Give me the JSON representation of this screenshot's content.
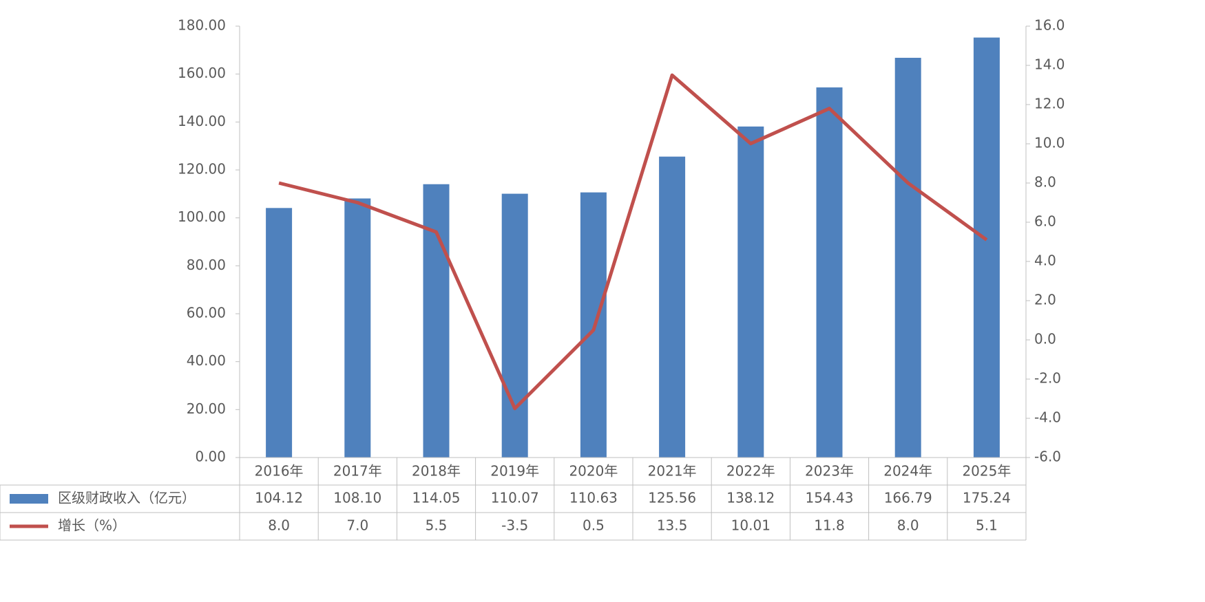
{
  "chart_data": {
    "type": "bar-line",
    "categories": [
      "2016年",
      "2017年",
      "2018年",
      "2019年",
      "2020年",
      "2021年",
      "2022年",
      "2023年",
      "2024年",
      "2025年"
    ],
    "series": [
      {
        "name": "区级财政收入（亿元）",
        "type": "bar",
        "color": "#4f81bd",
        "values": [
          104.12,
          108.1,
          114.05,
          110.07,
          110.63,
          125.56,
          138.12,
          154.43,
          166.79,
          175.24
        ],
        "value_labels": [
          "104.12",
          "108.10",
          "114.05",
          "110.07",
          "110.63",
          "125.56",
          "138.12",
          "154.43",
          "166.79",
          "175.24"
        ]
      },
      {
        "name": "增长（%）",
        "type": "line",
        "axis": "y2",
        "color": "#c0504d",
        "values": [
          8.0,
          7.0,
          5.5,
          -3.5,
          0.5,
          13.5,
          10.01,
          11.8,
          8.0,
          5.1
        ],
        "value_labels": [
          "8.0",
          "7.0",
          "5.5",
          "-3.5",
          "0.5",
          "13.5",
          "10.01",
          "11.8",
          "8.0",
          "5.1"
        ]
      }
    ],
    "ylim": [
      0,
      180
    ],
    "yticks": [
      {
        "value": 0,
        "label": "0.00"
      },
      {
        "value": 20,
        "label": "20.00"
      },
      {
        "value": 40,
        "label": "40.00"
      },
      {
        "value": 60,
        "label": "60.00"
      },
      {
        "value": 80,
        "label": "80.00"
      },
      {
        "value": 100,
        "label": "100.00"
      },
      {
        "value": 120,
        "label": "120.00"
      },
      {
        "value": 140,
        "label": "140.00"
      },
      {
        "value": 160,
        "label": "160.00"
      },
      {
        "value": 180,
        "label": "180.00"
      }
    ],
    "y2lim": [
      -6,
      16
    ],
    "y2ticks": [
      {
        "value": -6,
        "label": "-6.0"
      },
      {
        "value": -4,
        "label": "-4.0"
      },
      {
        "value": -2,
        "label": "-2.0"
      },
      {
        "value": 0,
        "label": "0.0"
      },
      {
        "value": 2,
        "label": "2.0"
      },
      {
        "value": 4,
        "label": "4.0"
      },
      {
        "value": 6,
        "label": "6.0"
      },
      {
        "value": 8,
        "label": "8.0"
      },
      {
        "value": 10,
        "label": "10.0"
      },
      {
        "value": 12,
        "label": "12.0"
      },
      {
        "value": 14,
        "label": "14.0"
      },
      {
        "value": 16,
        "label": "16.0"
      }
    ],
    "data_table": true
  }
}
